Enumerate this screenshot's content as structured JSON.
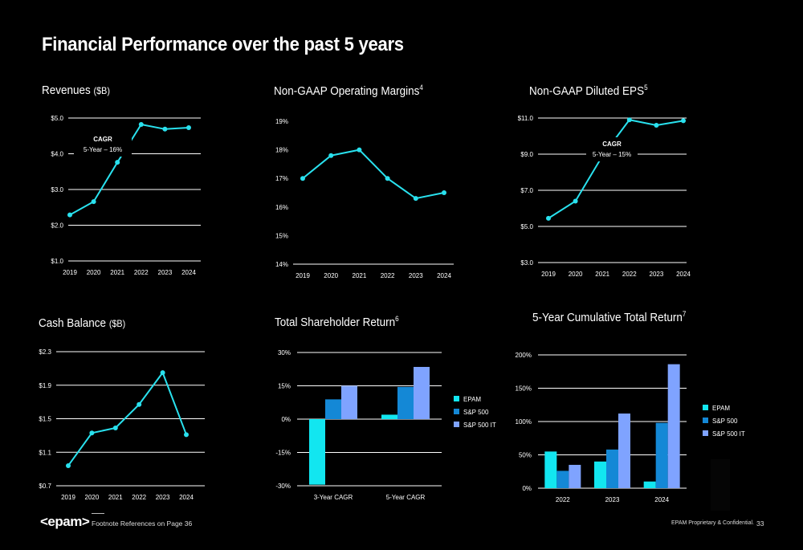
{
  "slide": {
    "title": "Financial Performance over the past 5 years",
    "logo": "<epam>",
    "footnote": "Footnote References on Page 36",
    "confidential": "EPAM Proprietary & Confidential.",
    "page_number": "33"
  },
  "colors": {
    "line": "#29e1ee",
    "epam": "#12e6f0",
    "sp500": "#1488d6",
    "sp500it": "#7fa3ff",
    "background": "#000000",
    "grid": "#ffffff"
  },
  "panels": {
    "revenues": {
      "title": "Revenues",
      "unit": "($B)",
      "sup": ""
    },
    "margins": {
      "title": "Non-GAAP Operating Margins",
      "unit": "",
      "sup": "4"
    },
    "eps": {
      "title": "Non-GAAP Diluted EPS",
      "unit": "",
      "sup": "5"
    },
    "cash": {
      "title": "Cash Balance",
      "unit": "($B)",
      "sup": ""
    },
    "tsr": {
      "title": "Total Shareholder Return",
      "unit": "",
      "sup": "6"
    },
    "ctr": {
      "title": "5-Year Cumulative Total Return",
      "unit": "",
      "sup": "7"
    }
  },
  "chart_data": [
    {
      "id": "revenues",
      "type": "line",
      "x": [
        "2019",
        "2020",
        "2021",
        "2022",
        "2023",
        "2024"
      ],
      "values": [
        2.29,
        2.66,
        3.76,
        4.82,
        4.69,
        4.73
      ],
      "ylim": [
        1.0,
        5.0
      ],
      "yticks": [
        1.0,
        2.0,
        3.0,
        4.0,
        5.0
      ],
      "ytick_labels": [
        "$1.0",
        "$2.0",
        "$3.0",
        "$4.0",
        "$5.0"
      ],
      "annotation": {
        "title": "CAGR",
        "text": "5-Year – 16%"
      },
      "grid": true
    },
    {
      "id": "margins",
      "type": "line",
      "x": [
        "2019",
        "2020",
        "2021",
        "2022",
        "2023",
        "2024"
      ],
      "values": [
        17.0,
        17.8,
        18.0,
        17.0,
        16.3,
        16.5
      ],
      "ylim": [
        14,
        19
      ],
      "yticks": [
        14,
        15,
        16,
        17,
        18,
        19
      ],
      "ytick_labels": [
        "14%",
        "15%",
        "16%",
        "17%",
        "18%",
        "19%"
      ],
      "grid": false
    },
    {
      "id": "eps",
      "type": "line",
      "x": [
        "2019",
        "2020",
        "2021",
        "2022",
        "2023",
        "2024"
      ],
      "values": [
        5.45,
        6.4,
        8.9,
        10.9,
        10.6,
        10.85
      ],
      "ylim": [
        3.0,
        11.0
      ],
      "yticks": [
        3.0,
        5.0,
        7.0,
        9.0,
        11.0
      ],
      "ytick_labels": [
        "$3.0",
        "$5.0",
        "$7.0",
        "$9.0",
        "$11.0"
      ],
      "annotation": {
        "title": "CAGR",
        "text": "5-Year – 15%"
      },
      "grid": true
    },
    {
      "id": "cash",
      "type": "line",
      "x": [
        "2019",
        "2020",
        "2021",
        "2022",
        "2023",
        "2024"
      ],
      "values": [
        0.94,
        1.33,
        1.39,
        1.67,
        2.05,
        1.31
      ],
      "ylim": [
        0.7,
        2.3
      ],
      "yticks": [
        0.7,
        1.1,
        1.5,
        1.9,
        2.3
      ],
      "ytick_labels": [
        "$0.7",
        "$1.1",
        "$1.5",
        "$1.9",
        "$2.3"
      ],
      "grid": true
    },
    {
      "id": "tsr",
      "type": "bar",
      "categories": [
        "3-Year CAGR",
        "5-Year CAGR"
      ],
      "series": [
        {
          "name": "EPAM",
          "values": [
            -29.5,
            2.0
          ]
        },
        {
          "name": "S&P 500",
          "values": [
            8.9,
            14.5
          ]
        },
        {
          "name": "S&P 500 IT",
          "values": [
            15.0,
            23.5
          ]
        }
      ],
      "ylim": [
        -30,
        30
      ],
      "yticks": [
        -30,
        -15,
        0,
        15,
        30
      ],
      "ytick_labels": [
        "-30%",
        "-15%",
        "0%",
        "15%",
        "30%"
      ],
      "legend": "right",
      "grid": true
    },
    {
      "id": "ctr",
      "type": "bar",
      "categories": [
        "2022",
        "2023",
        "2024"
      ],
      "series": [
        {
          "name": "EPAM",
          "values": [
            55,
            40,
            10
          ]
        },
        {
          "name": "S&P 500",
          "values": [
            26,
            58,
            98
          ]
        },
        {
          "name": "S&P 500 IT",
          "values": [
            35,
            112,
            186
          ]
        }
      ],
      "ylim": [
        0,
        200
      ],
      "yticks": [
        0,
        50,
        100,
        150,
        200
      ],
      "ytick_labels": [
        "0%",
        "50%",
        "100%",
        "150%",
        "200%"
      ],
      "legend": "right",
      "grid": true
    }
  ]
}
